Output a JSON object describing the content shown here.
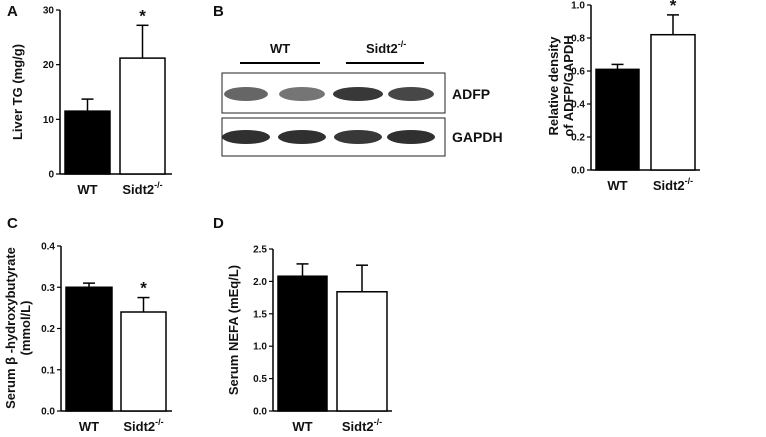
{
  "chart_data": [
    {
      "panel": "A",
      "type": "bar",
      "categories": [
        "WT",
        "Sidt2"
      ],
      "category_superscripts": [
        "",
        "-/-"
      ],
      "values": [
        11.5,
        21.2
      ],
      "errors": [
        2.2,
        6.0
      ],
      "fills": [
        "#000000",
        "#ffffff"
      ],
      "ylabel": "Liver TG (mg/g)",
      "ylim": [
        0,
        30
      ],
      "yticks": [
        "0",
        "10",
        "20",
        "30"
      ],
      "annotation": "*"
    },
    {
      "panel": "B",
      "type": "bar",
      "categories": [
        "WT",
        "Sidt2"
      ],
      "category_superscripts": [
        "",
        "-/-"
      ],
      "values": [
        0.61,
        0.82
      ],
      "errors": [
        0.03,
        0.12
      ],
      "fills": [
        "#000000",
        "#ffffff"
      ],
      "ylabel_lines": [
        "Relative density",
        "of ADFP/GAPDH"
      ],
      "ylim": [
        0,
        1.0
      ],
      "yticks": [
        "0.0",
        "0.2",
        "0.4",
        "0.6",
        "0.8",
        "1.0"
      ],
      "annotation": "*"
    },
    {
      "panel": "C",
      "type": "bar",
      "categories": [
        "WT",
        "Sidt2"
      ],
      "category_superscripts": [
        "",
        "-/-"
      ],
      "values": [
        0.3,
        0.24
      ],
      "errors": [
        0.01,
        0.035
      ],
      "fills": [
        "#000000",
        "#ffffff"
      ],
      "ylabel_lines": [
        "Serum β -hydroxybutyrate",
        "(mmol/L)"
      ],
      "ylim": [
        0,
        0.4
      ],
      "yticks": [
        "0.0",
        "0.1",
        "0.2",
        "0.3",
        "0.4"
      ],
      "annotation": "*"
    },
    {
      "panel": "D",
      "type": "bar",
      "categories": [
        "WT",
        "Sidt2"
      ],
      "category_superscripts": [
        "",
        "-/-"
      ],
      "values": [
        2.08,
        1.84
      ],
      "errors": [
        0.19,
        0.41
      ],
      "fills": [
        "#000000",
        "#ffffff"
      ],
      "ylabel": "Serum NEFA (mEq/L)",
      "ylim": [
        0,
        2.5
      ],
      "yticks": [
        "0.0",
        "0.5",
        "1.0",
        "1.5",
        "2.0",
        "2.5"
      ],
      "annotation": ""
    }
  ],
  "blot": {
    "panel": "B",
    "groups": [
      "WT",
      "Sidt2"
    ],
    "group_superscripts": [
      "",
      "-/-"
    ],
    "bands": [
      "ADFP",
      "GAPDH"
    ],
    "lanes": 4
  }
}
